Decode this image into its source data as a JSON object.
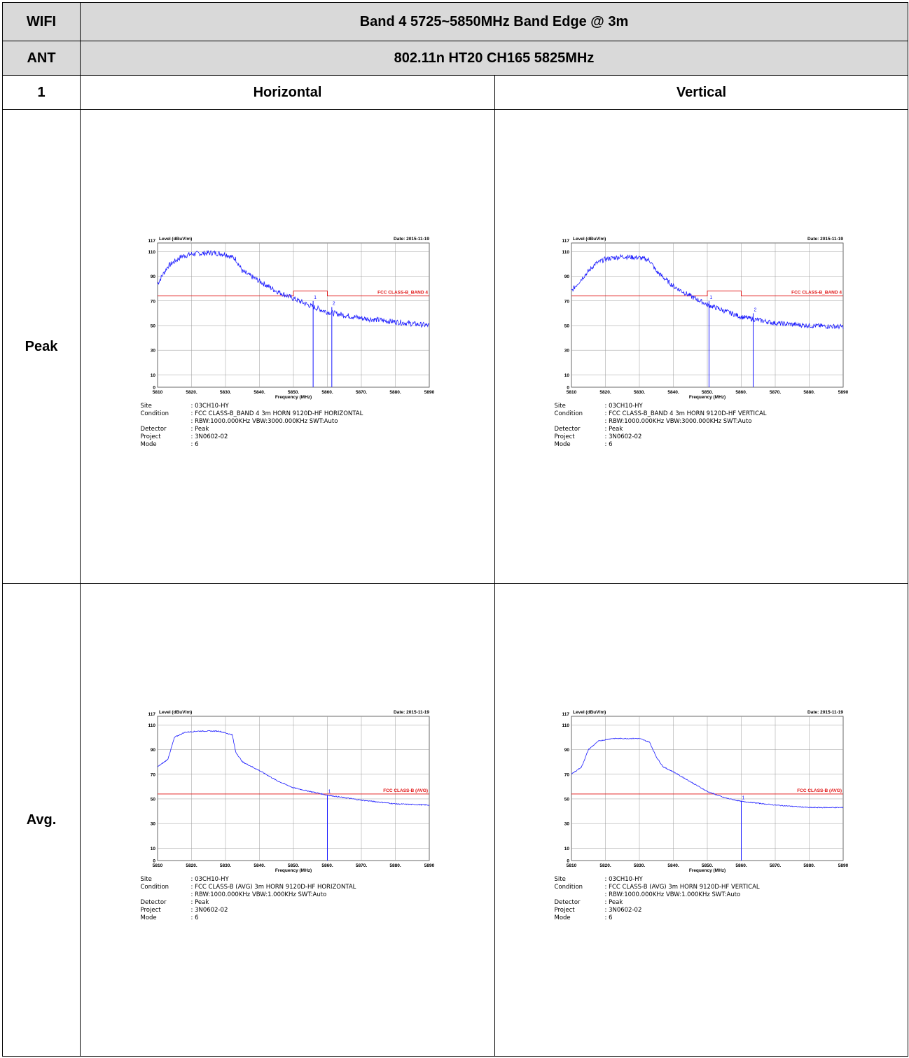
{
  "header": {
    "wifi_label": "WIFI",
    "title": "Band 4 5725~5850MHz Band Edge @ 3m",
    "ant_label": "ANT",
    "mode_title": "802.11n HT20 CH165 5825MHz",
    "index": "1",
    "horizontal": "Horizontal",
    "vertical": "Vertical"
  },
  "rows": {
    "peak": "Peak",
    "avg": "Avg."
  },
  "chart_common": {
    "level_label": "Level (dBuV/m)",
    "date": "Date: 2015-11-19",
    "xlabel": "Frequency (MHz)",
    "y_top": "117",
    "y_ticks": [
      "110",
      "90",
      "70",
      "50",
      "30",
      "10",
      "0"
    ],
    "x_ticks": [
      "5810",
      "5820.",
      "5830.",
      "5840.",
      "5850.",
      "5860.",
      "5870.",
      "5880.",
      "5890"
    ]
  },
  "chart_data": [
    {
      "type": "line",
      "panel": "peak-horizontal",
      "xlim": [
        5810,
        5890
      ],
      "ylim": [
        0,
        117
      ],
      "limit_label": "FCC CLASS-B_BAND 4",
      "limit_segments": [
        [
          5810,
          5850,
          74
        ],
        [
          5850,
          5860,
          78
        ],
        [
          5860,
          5890,
          74
        ]
      ],
      "markers": [
        {
          "label": "1",
          "x": 5855.8,
          "y": 70
        },
        {
          "label": "2",
          "x": 5861.3,
          "y": 65
        }
      ],
      "trace_profile": [
        [
          5810,
          84
        ],
        [
          5813,
          98
        ],
        [
          5817,
          106
        ],
        [
          5820,
          108
        ],
        [
          5826,
          109
        ],
        [
          5830,
          108
        ],
        [
          5833,
          104
        ],
        [
          5835,
          94
        ],
        [
          5840,
          86
        ],
        [
          5845,
          78
        ],
        [
          5850,
          72
        ],
        [
          5855,
          66
        ],
        [
          5860,
          61
        ],
        [
          5870,
          56
        ],
        [
          5880,
          53
        ],
        [
          5890,
          50
        ]
      ],
      "noise": 2.2,
      "site": ": 03CH10-HY",
      "condition": ": FCC CLASS-B_BAND 4 3m HORN 9120D-HF HORIZONTAL",
      "condition2": ": RBW:1000.000KHz VBW:3000.000KHz SWT:Auto",
      "detector": ": Peak",
      "project": ": 3N0602-02",
      "mode": ": 6"
    },
    {
      "type": "line",
      "panel": "peak-vertical",
      "xlim": [
        5810,
        5890
      ],
      "ylim": [
        0,
        117
      ],
      "limit_label": "FCC CLASS-B_BAND 4",
      "limit_segments": [
        [
          5810,
          5850,
          74
        ],
        [
          5850,
          5860,
          78
        ],
        [
          5860,
          5890,
          74
        ]
      ],
      "markers": [
        {
          "label": "1",
          "x": 5850.5,
          "y": 70
        },
        {
          "label": "2",
          "x": 5863.5,
          "y": 60
        }
      ],
      "trace_profile": [
        [
          5810,
          78
        ],
        [
          5813,
          88
        ],
        [
          5817,
          100
        ],
        [
          5820,
          104
        ],
        [
          5825,
          106
        ],
        [
          5830,
          105
        ],
        [
          5833,
          103
        ],
        [
          5835,
          94
        ],
        [
          5840,
          82
        ],
        [
          5845,
          74
        ],
        [
          5850,
          67
        ],
        [
          5855,
          62
        ],
        [
          5860,
          57
        ],
        [
          5870,
          52
        ],
        [
          5880,
          50
        ],
        [
          5890,
          49
        ]
      ],
      "noise": 2.0,
      "site": ": 03CH10-HY",
      "condition": ": FCC CLASS-B_BAND 4 3m HORN 9120D-HF VERTICAL",
      "condition2": ": RBW:1000.000KHz VBW:3000.000KHz SWT:Auto",
      "detector": ": Peak",
      "project": ": 3N0602-02",
      "mode": ": 6"
    },
    {
      "type": "line",
      "panel": "avg-horizontal",
      "xlim": [
        5810,
        5890
      ],
      "ylim": [
        0,
        117
      ],
      "limit_label": "FCC CLASS-B (AVG)",
      "limit_segments": [
        [
          5810,
          5890,
          54
        ]
      ],
      "markers": [
        {
          "label": "1",
          "x": 5860,
          "y": 53
        }
      ],
      "trace_profile": [
        [
          5810,
          76
        ],
        [
          5813,
          82
        ],
        [
          5815,
          100
        ],
        [
          5818,
          104
        ],
        [
          5822,
          105
        ],
        [
          5828,
          105
        ],
        [
          5832,
          102
        ],
        [
          5833,
          88
        ],
        [
          5835,
          80
        ],
        [
          5840,
          73
        ],
        [
          5845,
          65
        ],
        [
          5850,
          59
        ],
        [
          5855,
          56
        ],
        [
          5860,
          53
        ],
        [
          5870,
          49
        ],
        [
          5880,
          46
        ],
        [
          5890,
          45
        ]
      ],
      "noise": 0.4,
      "site": ": 03CH10-HY",
      "condition": ": FCC CLASS-B (AVG) 3m HORN 9120D-HF HORIZONTAL",
      "condition2": ": RBW:1000.000KHz VBW:1.000KHz SWT:Auto",
      "detector": ": Peak",
      "project": ": 3N0602-02",
      "mode": ": 6"
    },
    {
      "type": "line",
      "panel": "avg-vertical",
      "xlim": [
        5810,
        5890
      ],
      "ylim": [
        0,
        117
      ],
      "limit_label": "FCC CLASS-B (AVG)",
      "limit_segments": [
        [
          5810,
          5890,
          54
        ]
      ],
      "markers": [
        {
          "label": "1",
          "x": 5860,
          "y": 48
        }
      ],
      "trace_profile": [
        [
          5810,
          70
        ],
        [
          5813,
          76
        ],
        [
          5815,
          90
        ],
        [
          5818,
          97
        ],
        [
          5822,
          99
        ],
        [
          5826,
          99
        ],
        [
          5830,
          99
        ],
        [
          5833,
          96
        ],
        [
          5835,
          84
        ],
        [
          5837,
          76
        ],
        [
          5840,
          72
        ],
        [
          5845,
          64
        ],
        [
          5850,
          56
        ],
        [
          5855,
          51
        ],
        [
          5860,
          48
        ],
        [
          5870,
          45
        ],
        [
          5880,
          43
        ],
        [
          5890,
          43
        ]
      ],
      "noise": 0.35,
      "site": ": 03CH10-HY",
      "condition": ": FCC CLASS-B (AVG) 3m HORN 9120D-HF VERTICAL",
      "condition2": ": RBW:1000.000KHz VBW:1.000KHz SWT:Auto",
      "detector": ": Peak",
      "project": ": 3N0602-02",
      "mode": ": 6"
    }
  ],
  "meta_labels": {
    "site": "Site",
    "condition": "Condition",
    "detector": "Detector",
    "project": "Project",
    "mode": "Mode"
  },
  "colors": {
    "trace": "#1a1aff",
    "limit": "#e01010",
    "header_bg": "#d9d9d9",
    "grid": "#9a9a9a"
  }
}
